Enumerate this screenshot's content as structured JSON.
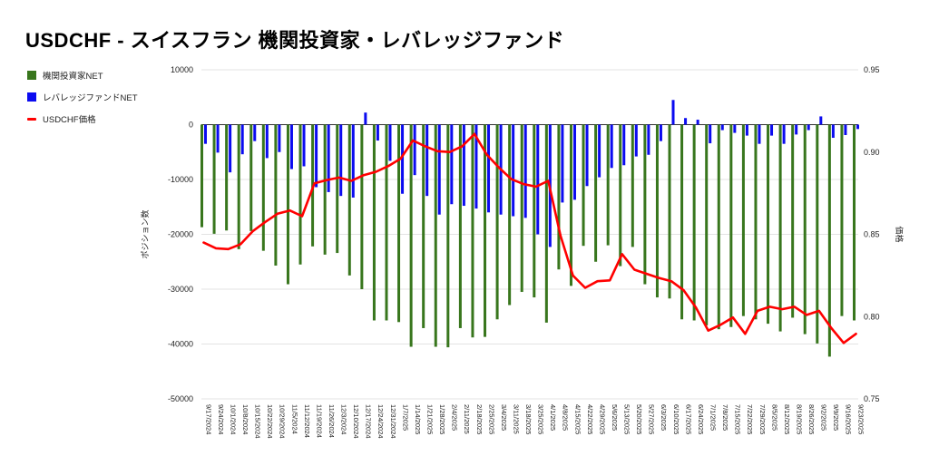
{
  "title": "USDCHF - スイスフラン 機関投資家・レバレッジファンド",
  "legend": [
    {
      "label": "機関投資家NET",
      "color": "#38761d",
      "marker": "square"
    },
    {
      "label": "レバレッジファンドNET",
      "color": "#0b0bf0",
      "marker": "square"
    },
    {
      "label": "USDCHF価格",
      "color": "#ff0000",
      "marker": "line"
    }
  ],
  "colors": {
    "institutional": "#38761d",
    "leveraged": "#0b0bf0",
    "price": "#ff0000",
    "gridline": "#e3e3e3",
    "zeroline": "#333333",
    "tick_text": "#222222"
  },
  "chart_data": {
    "type": "combo",
    "x_axis": {
      "tick_rotation_deg": 90
    },
    "left_axis": {
      "label": "ポジション数",
      "ticks": [
        10000,
        0,
        -10000,
        -20000,
        -30000,
        -40000,
        -50000
      ],
      "range": [
        -50000,
        10000
      ]
    },
    "right_axis": {
      "label": "価格",
      "ticks": [
        0.95,
        0.9,
        0.85,
        0.8,
        0.75
      ],
      "range": [
        0.75,
        0.95
      ]
    },
    "categories": [
      "9/17/2024",
      "9/24/2024",
      "10/1/2024",
      "10/8/2024",
      "10/15/2024",
      "10/22/2024",
      "10/29/2024",
      "11/5/2024",
      "11/12/2024",
      "11/19/2024",
      "11/26/2024",
      "12/3/2024",
      "12/10/2024",
      "12/17/2024",
      "12/24/2024",
      "12/31/2024",
      "1/7/2025",
      "1/14/2025",
      "1/21/2025",
      "1/28/2025",
      "2/4/2025",
      "2/11/2025",
      "2/18/2025",
      "2/25/2025",
      "3/4/2025",
      "3/11/2025",
      "3/18/2025",
      "3/25/2025",
      "4/1/2025",
      "4/8/2025",
      "4/15/2025",
      "4/22/2025",
      "4/29/2025",
      "5/6/2025",
      "5/13/2025",
      "5/20/2025",
      "5/27/2025",
      "6/3/2025",
      "6/10/2025",
      "6/17/2025",
      "6/24/2025",
      "7/1/2025",
      "7/8/2025",
      "7/15/2025",
      "7/22/2025",
      "7/29/2025",
      "8/5/2025",
      "8/12/2025",
      "8/19/2025",
      "8/26/2025",
      "9/2/2025",
      "9/9/2025",
      "9/16/2025",
      "9/23/2025"
    ],
    "series": [
      {
        "name": "機関投資家NET",
        "type": "bar",
        "axis": "left",
        "color": "#38761d",
        "values": [
          -18700,
          -19900,
          -19300,
          -22700,
          -19400,
          -23000,
          -25700,
          -29100,
          -25500,
          -22200,
          -23700,
          -23400,
          -27500,
          -30000,
          -35700,
          -35700,
          -36000,
          -40500,
          -37100,
          -40500,
          -40600,
          -37100,
          -38800,
          -38700,
          -35500,
          -32900,
          -30500,
          -31500,
          -36100,
          -26400,
          -29400,
          -22100,
          -25000,
          -22000,
          -25800,
          -22300,
          -29100,
          -31500,
          -31700,
          -35500,
          -35700,
          -36600,
          -37300,
          -36900,
          -34900,
          -35500,
          -36300,
          -37700,
          -35200,
          -38200,
          -39900,
          -42300,
          -34900,
          -35700
        ]
      },
      {
        "name": "レバレッジファンドNET",
        "type": "bar",
        "axis": "left",
        "color": "#0b0bf0",
        "values": [
          -3500,
          -5100,
          -8700,
          -5400,
          -3000,
          -6100,
          -5000,
          -8100,
          -7600,
          -11400,
          -12300,
          -13000,
          -13300,
          2200,
          -2900,
          -6600,
          -12600,
          -9200,
          -13000,
          -16400,
          -14500,
          -14800,
          -15300,
          -16000,
          -16400,
          -16700,
          -17000,
          -20000,
          -22300,
          -14200,
          -13700,
          -11200,
          -9600,
          -7900,
          -7400,
          -5800,
          -5500,
          -3000,
          4500,
          1200,
          900,
          -3400,
          -1000,
          -1500,
          -2000,
          -3500,
          -2000,
          -3500,
          -1800,
          -1000,
          1500,
          -2400,
          -1900,
          -800
        ]
      },
      {
        "name": "USDCHF価格",
        "type": "line",
        "axis": "right",
        "color": "#ff0000",
        "values": [
          0.845,
          0.8415,
          0.841,
          0.844,
          0.852,
          0.8575,
          0.8625,
          0.8645,
          0.861,
          0.881,
          0.883,
          0.8845,
          0.8825,
          0.886,
          0.888,
          0.8915,
          0.896,
          0.907,
          0.9035,
          0.9005,
          0.9,
          0.9035,
          0.911,
          0.8985,
          0.8905,
          0.8835,
          0.8805,
          0.879,
          0.8825,
          0.849,
          0.825,
          0.8175,
          0.8215,
          0.822,
          0.838,
          0.8285,
          0.826,
          0.8235,
          0.8215,
          0.816,
          0.8055,
          0.7915,
          0.795,
          0.7995,
          0.7895,
          0.8035,
          0.806,
          0.8045,
          0.806,
          0.801,
          0.8035,
          0.793,
          0.784,
          0.7895
        ]
      }
    ]
  }
}
